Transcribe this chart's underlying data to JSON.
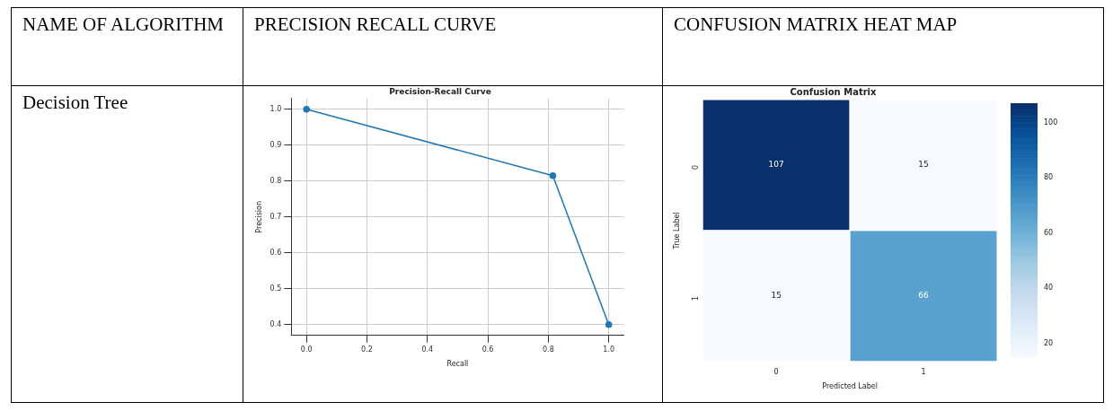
{
  "chart_data": [
    {
      "type": "other",
      "annotations": [
        "NAME OF ALGORITHM",
        "PRECISION RECALL CURVE",
        "CONFUSION MATRIX HEAT MAP",
        "Decision Tree"
      ]
    },
    {
      "type": "line",
      "title": "Precision-Recall Curve",
      "xlabel": "Recall",
      "ylabel": "Precision",
      "x": [
        0,
        0.815,
        1
      ],
      "series": [
        {
          "color": "#1f77b4",
          "values": [
            1,
            0.815,
            0.4
          ]
        }
      ],
      "xlim": [
        -0.05,
        1.05
      ],
      "ylim": [
        0.37,
        1.03
      ],
      "xticks": [
        {
          "value": 0,
          "label": "0.0"
        },
        0.2,
        0.4,
        0.6,
        0.8,
        {
          "value": 1,
          "label": "1.0"
        }
      ],
      "yticks": [
        0.4,
        0.5,
        0.6,
        0.7,
        0.8,
        0.9,
        {
          "value": 1,
          "label": "1.0"
        }
      ],
      "grid": true,
      "marker": "circle",
      "line_style": "solid"
    },
    {
      "type": "heatmap",
      "title": "Confusion Matrix",
      "xlabel": "Predicted Label",
      "ylabel": "True Label",
      "categories": [
        "0",
        "1"
      ],
      "y_categories": [
        "0",
        "1"
      ],
      "cells": [
        [
          107,
          15
        ],
        [
          15,
          66
        ]
      ],
      "clim": [
        15,
        107
      ],
      "cticks": [
        20,
        40,
        60,
        80,
        100
      ],
      "data_labels": true
    }
  ]
}
